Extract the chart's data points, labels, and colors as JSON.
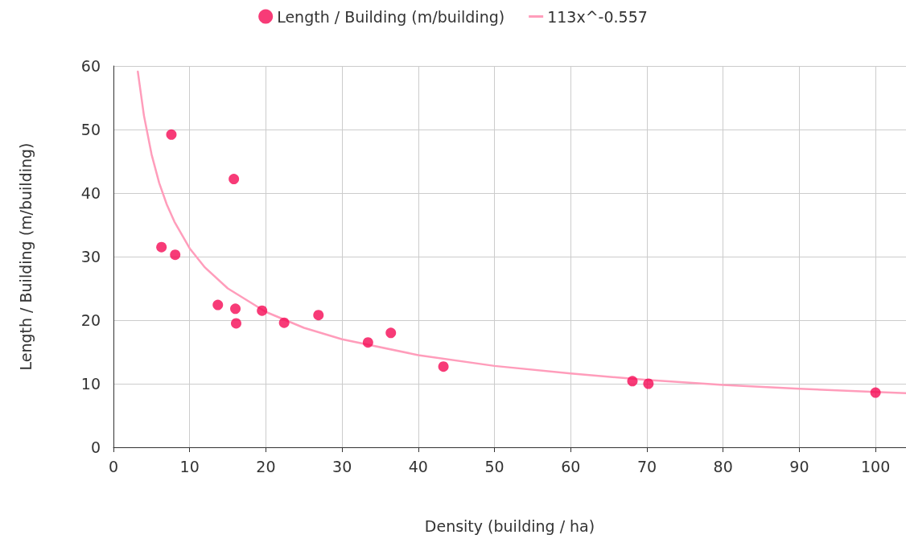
{
  "chart_data": {
    "type": "scatter",
    "xlabel": "Density (building / ha)",
    "ylabel": "Length / Building (m/building)",
    "xlim": [
      0,
      104
    ],
    "xticks": [
      0,
      10,
      20,
      30,
      40,
      50,
      60,
      70,
      80,
      90,
      100
    ],
    "ylim": [
      0,
      60
    ],
    "yticks": [
      0,
      10,
      20,
      30,
      40,
      50,
      60
    ],
    "grid": true,
    "legend": "top",
    "series": [
      {
        "name": "Length / Building (m/building)",
        "type": "scatter",
        "marker": "circle",
        "color": "#f50a55",
        "x": [
          7.6,
          15.8,
          6.3,
          8.1,
          13.7,
          16.0,
          16.1,
          19.5,
          22.4,
          26.9,
          33.4,
          36.4,
          43.3,
          68.1,
          70.2,
          100.0
        ],
        "values": [
          49.2,
          42.2,
          31.5,
          30.3,
          22.4,
          21.8,
          19.5,
          21.5,
          19.6,
          20.8,
          16.5,
          18.0,
          12.7,
          10.4,
          10.0,
          8.6
        ]
      },
      {
        "name": "113x^-0.557",
        "type": "line",
        "marker": "none",
        "line_style": "solid",
        "color": "#ff9dbb",
        "x": [
          3.2,
          4,
          5,
          6,
          7,
          8,
          10,
          12,
          15,
          20,
          25,
          30,
          40,
          50,
          60,
          70,
          80,
          90,
          100,
          104
        ],
        "values": [
          59.1,
          52.2,
          46.1,
          41.6,
          38.2,
          35.5,
          31.3,
          28.3,
          25.0,
          21.3,
          18.8,
          17.0,
          14.5,
          12.8,
          11.6,
          10.6,
          9.8,
          9.2,
          8.7,
          8.5
        ]
      }
    ]
  }
}
